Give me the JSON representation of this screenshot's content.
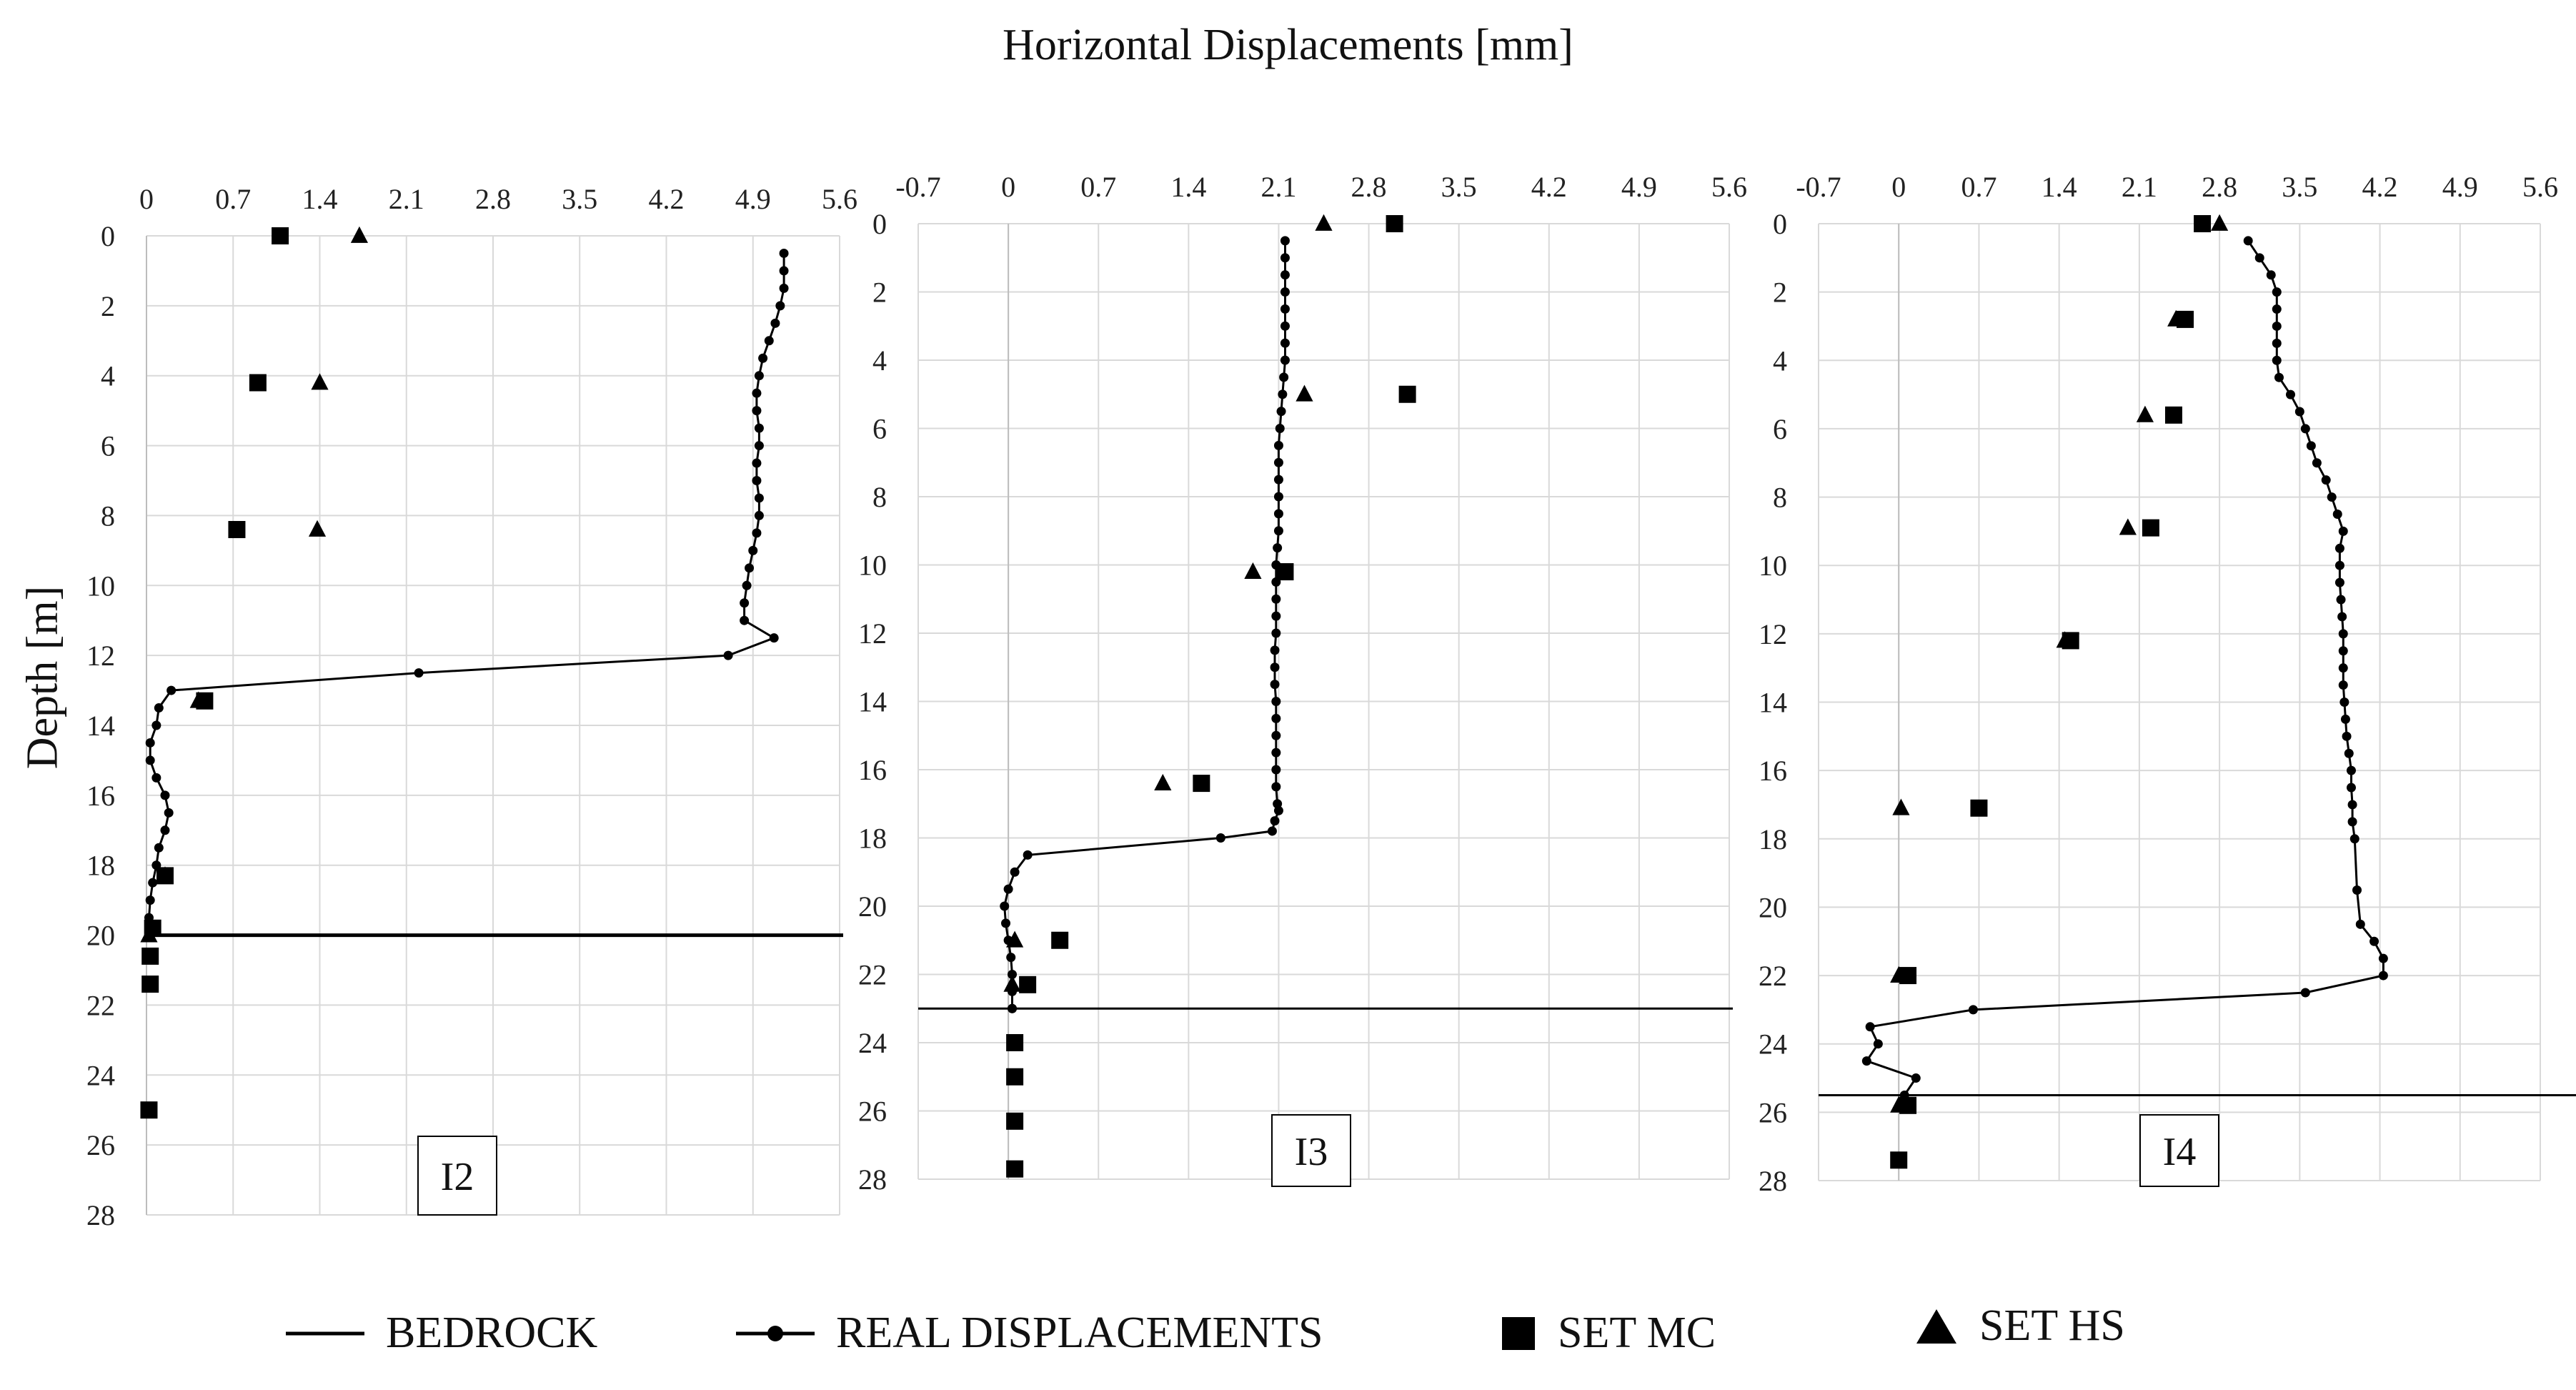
{
  "title": "Horizontal Displacements [mm]",
  "y_label": "Depth [m]",
  "legend": {
    "bedrock": "BEDROCK",
    "real": "REAL DISPLACEMENTS",
    "set_mc": "SET MC",
    "set_hs": "SET HS"
  },
  "colors": {
    "line": "#000000",
    "grid": "#d9d9d9",
    "text": "#222222"
  },
  "chart_data": [
    {
      "type": "scatter",
      "label": "I2",
      "xlabel": "Horizontal Displacements [mm]",
      "ylabel": "Depth [m]",
      "xlim": [
        0,
        5.6
      ],
      "ylim": [
        0,
        28
      ],
      "x_ticks": [
        "0",
        "0.7",
        "1.4",
        "2.1",
        "2.8",
        "3.5",
        "4.2",
        "4.9",
        "5.6"
      ],
      "y_ticks": [
        "0",
        "2",
        "4",
        "6",
        "8",
        "10",
        "12",
        "14",
        "16",
        "18",
        "20",
        "22",
        "24",
        "26",
        "28"
      ],
      "bedrock_depth": 20,
      "real": {
        "x": [
          5.15,
          5.15,
          5.15,
          5.12,
          5.08,
          5.03,
          4.98,
          4.95,
          4.93,
          4.93,
          4.95,
          4.95,
          4.93,
          4.93,
          4.95,
          4.95,
          4.93,
          4.9,
          4.87,
          4.85,
          4.83,
          4.83,
          5.07,
          4.7,
          2.2,
          0.2,
          0.1,
          0.08,
          0.03,
          0.03,
          0.08,
          0.15,
          0.18,
          0.15,
          0.1,
          0.08,
          0.05,
          0.03,
          0.02,
          0.03
        ],
        "y": [
          0.5,
          1.0,
          1.5,
          2.0,
          2.5,
          3.0,
          3.5,
          4.0,
          4.5,
          5.0,
          5.5,
          6.0,
          6.5,
          7.0,
          7.5,
          8.0,
          8.5,
          9.0,
          9.5,
          10.0,
          10.5,
          11.0,
          11.5,
          12.0,
          12.5,
          13.0,
          13.5,
          14.0,
          14.5,
          15.0,
          15.5,
          16.0,
          16.5,
          17.0,
          17.5,
          18.0,
          18.5,
          19.0,
          19.5,
          20.0
        ]
      },
      "set_mc": {
        "x": [
          1.08,
          0.9,
          0.73,
          0.47,
          0.15,
          0.05,
          0.03,
          0.03,
          0.02
        ],
        "y": [
          0,
          4.2,
          8.4,
          13.3,
          18.3,
          19.8,
          20.6,
          21.4,
          25.0
        ]
      },
      "set_hs": {
        "x": [
          1.72,
          1.4,
          1.38,
          0.42,
          0.15,
          0.02
        ],
        "y": [
          0,
          4.2,
          8.4,
          13.3,
          18.3,
          20.0
        ]
      }
    },
    {
      "type": "scatter",
      "label": "I3",
      "xlabel": "Horizontal Displacements [mm]",
      "ylabel": "Depth [m]",
      "xlim": [
        -0.7,
        5.6
      ],
      "ylim": [
        0,
        28
      ],
      "x_ticks": [
        "-0.7",
        "0",
        "0.7",
        "1.4",
        "2.1",
        "2.8",
        "3.5",
        "4.2",
        "4.9",
        "5.6"
      ],
      "y_ticks": [
        "0",
        "2",
        "4",
        "6",
        "8",
        "10",
        "12",
        "14",
        "16",
        "18",
        "20",
        "22",
        "24",
        "26",
        "28"
      ],
      "bedrock_depth": 23,
      "real": {
        "x": [
          2.15,
          2.15,
          2.15,
          2.15,
          2.15,
          2.15,
          2.15,
          2.15,
          2.14,
          2.13,
          2.12,
          2.11,
          2.1,
          2.1,
          2.1,
          2.1,
          2.1,
          2.1,
          2.09,
          2.08,
          2.08,
          2.08,
          2.08,
          2.08,
          2.07,
          2.07,
          2.07,
          2.08,
          2.08,
          2.08,
          2.08,
          2.08,
          2.08,
          2.09,
          2.1,
          2.07,
          2.05,
          1.65,
          0.15,
          0.05,
          0.0,
          -0.03,
          -0.02,
          0.0,
          0.02,
          0.03,
          0.03,
          0.03,
          0.03
        ],
        "y": [
          0.5,
          1.0,
          1.5,
          2.0,
          2.5,
          3.0,
          3.5,
          4.0,
          4.5,
          5.0,
          5.5,
          6.0,
          6.5,
          7.0,
          7.5,
          8.0,
          8.5,
          9.0,
          9.5,
          10.0,
          10.5,
          11.0,
          11.5,
          12.0,
          12.5,
          13.0,
          13.5,
          14.0,
          14.5,
          15.0,
          15.5,
          16.0,
          16.5,
          17.0,
          17.2,
          17.5,
          17.8,
          18.0,
          18.5,
          19.0,
          19.5,
          20.0,
          20.5,
          21.0,
          21.5,
          22.0,
          22.5,
          23.0,
          23.0
        ]
      },
      "set_mc": {
        "x": [
          3.0,
          3.1,
          2.15,
          1.5,
          0.4,
          0.15,
          0.05,
          0.05,
          0.05,
          0.05
        ],
        "y": [
          0,
          5.0,
          10.2,
          16.4,
          21.0,
          22.3,
          24.0,
          25.0,
          26.3,
          27.7
        ]
      },
      "set_hs": {
        "x": [
          2.45,
          2.3,
          1.9,
          1.2,
          0.05,
          0.03
        ],
        "y": [
          0,
          5.0,
          10.2,
          16.4,
          21.0,
          22.3
        ]
      }
    },
    {
      "type": "scatter",
      "label": "I4",
      "xlabel": "Horizontal Displacements [mm]",
      "ylabel": "Depth [m]",
      "xlim": [
        -0.7,
        5.6
      ],
      "ylim": [
        0,
        28
      ],
      "x_ticks": [
        "-0.7",
        "0",
        "0.7",
        "1.4",
        "2.1",
        "2.8",
        "3.5",
        "4.2",
        "4.9",
        "5.6"
      ],
      "y_ticks": [
        "0",
        "2",
        "4",
        "6",
        "8",
        "10",
        "12",
        "14",
        "16",
        "18",
        "20",
        "22",
        "24",
        "26",
        "28"
      ],
      "bedrock_depth": 25.5,
      "real": {
        "x": [
          3.05,
          3.15,
          3.25,
          3.3,
          3.3,
          3.3,
          3.3,
          3.3,
          3.32,
          3.42,
          3.5,
          3.55,
          3.6,
          3.65,
          3.73,
          3.78,
          3.83,
          3.88,
          3.85,
          3.85,
          3.85,
          3.86,
          3.87,
          3.88,
          3.88,
          3.88,
          3.88,
          3.89,
          3.9,
          3.91,
          3.93,
          3.95,
          3.95,
          3.96,
          3.96,
          3.98,
          4.0,
          4.03,
          4.15,
          4.23,
          4.23,
          3.55,
          0.65,
          -0.25,
          -0.18,
          -0.28,
          0.15,
          0.05
        ],
        "y": [
          0.5,
          1.0,
          1.5,
          2.0,
          2.5,
          3.0,
          3.5,
          4.0,
          4.5,
          5.0,
          5.5,
          6.0,
          6.5,
          7.0,
          7.5,
          8.0,
          8.5,
          9.0,
          9.5,
          10.0,
          10.5,
          11.0,
          11.5,
          12.0,
          12.5,
          13.0,
          13.5,
          14.0,
          14.5,
          15.0,
          15.5,
          16.0,
          16.5,
          17.0,
          17.5,
          18.0,
          19.5,
          20.5,
          21.0,
          21.5,
          22.0,
          22.5,
          23.0,
          23.5,
          24.0,
          24.5,
          25.0,
          25.5
        ]
      },
      "set_mc": {
        "x": [
          2.65,
          2.5,
          2.4,
          2.2,
          1.5,
          0.7,
          0.08,
          0.08,
          0.0
        ],
        "y": [
          0,
          2.8,
          5.6,
          8.9,
          12.2,
          17.1,
          22.0,
          25.8,
          27.4
        ]
      },
      "set_hs": {
        "x": [
          2.8,
          2.42,
          2.15,
          2.0,
          1.45,
          0.02,
          0.0,
          0.0
        ],
        "y": [
          0,
          2.8,
          5.6,
          8.9,
          12.2,
          17.1,
          22.0,
          25.8
        ]
      }
    }
  ]
}
